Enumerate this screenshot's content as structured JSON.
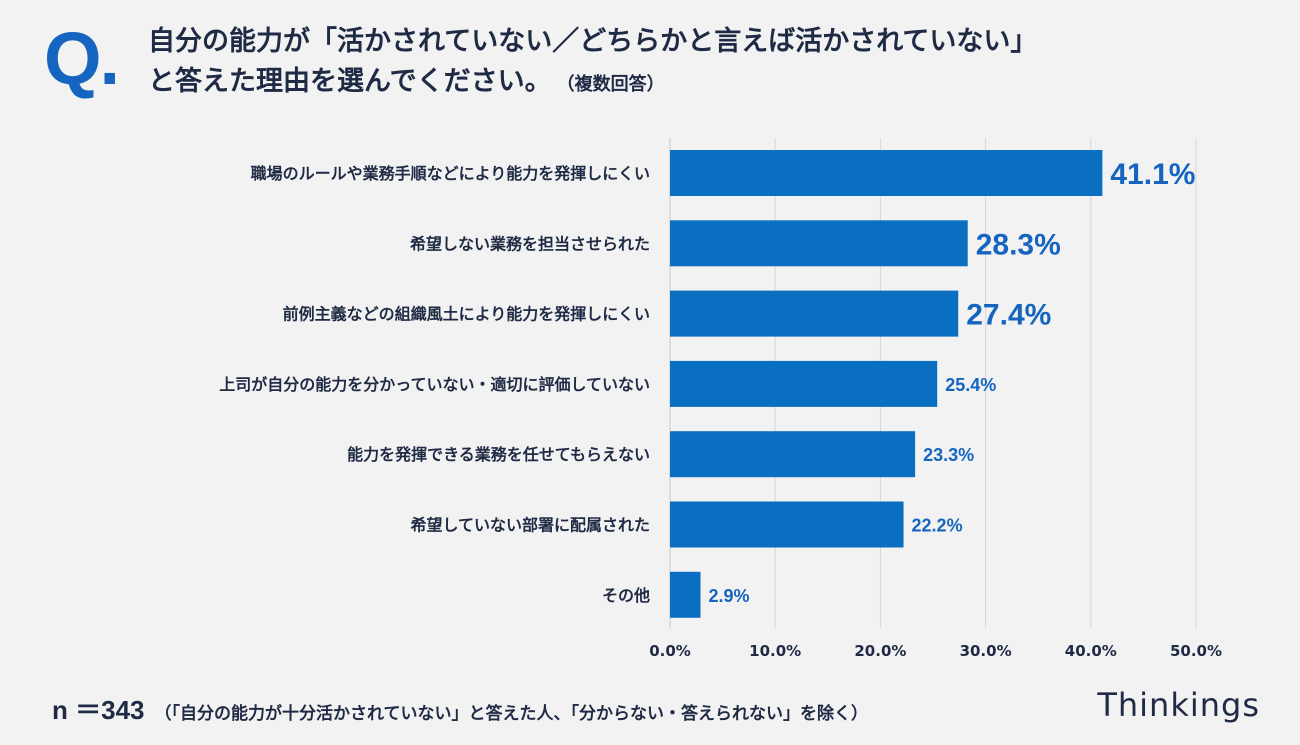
{
  "header": {
    "q_mark": "Q.",
    "title_line1": "自分の能力が「活かされていない／どちらかと言えば活かされていない」",
    "title_line2": "と答えた理由を選んでください。",
    "title_note": "（複数回答）"
  },
  "chart_data": {
    "type": "bar",
    "orientation": "horizontal",
    "categories": [
      "職場のルールや業務手順などにより能力を発揮しにくい",
      "希望しない業務を担当させられた",
      "前例主義などの組織風土により能力を発揮しにくい",
      "上司が自分の能力を分かっていない・適切に評価していない",
      "能力を発揮できる業務を任せてもらえない",
      "希望していない部署に配属された",
      "その他"
    ],
    "values": [
      41.1,
      28.3,
      27.4,
      25.4,
      23.3,
      22.2,
      2.9
    ],
    "value_labels": [
      "41.1%",
      "28.3%",
      "27.4%",
      "25.4%",
      "23.3%",
      "22.2%",
      "2.9%"
    ],
    "xlim": [
      0,
      50
    ],
    "xticks": [
      "0.0%",
      "10.0%",
      "20.0%",
      "30.0%",
      "40.0%",
      "50.0%"
    ],
    "grid": true,
    "bar_color": "#0b6fc1",
    "label_color": "#1565c0"
  },
  "footer": {
    "n_label": "n ＝343",
    "note": "（「自分の能力が十分活かされていない」と答えた人、「分からない・答えられない」を除く）",
    "brand": "Thinkings"
  }
}
